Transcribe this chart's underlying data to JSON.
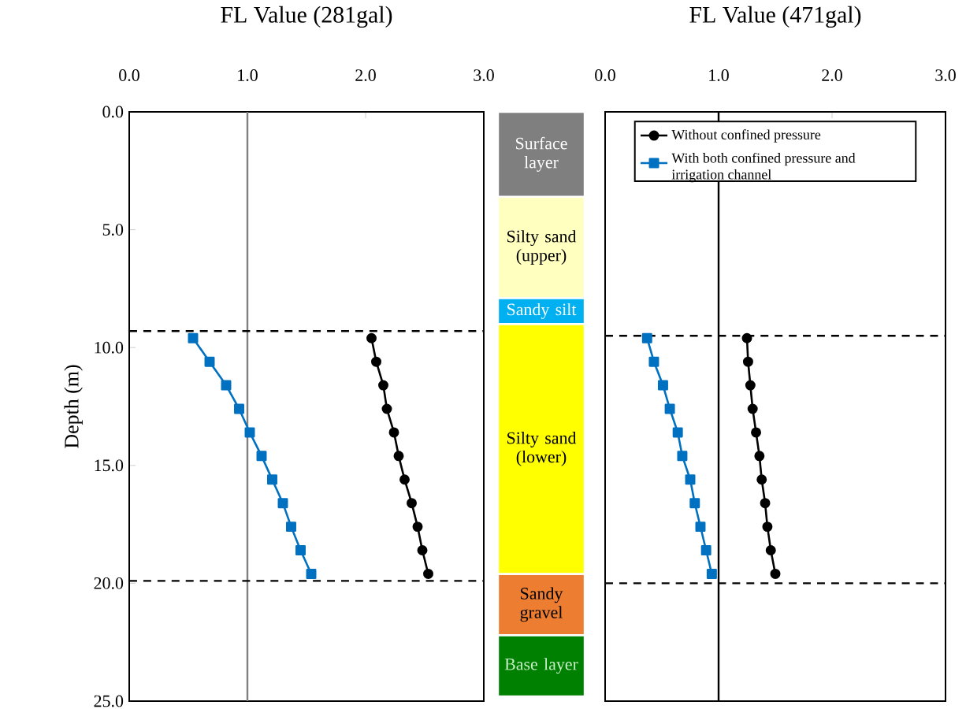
{
  "chart_data": [
    {
      "type": "line",
      "orientation": "horizontal",
      "title": "FL Value (281gal)",
      "ylabel": "Depth (m)",
      "xlim": [
        0,
        3
      ],
      "xticks": [
        {
          "value": 0,
          "label": "0.0"
        },
        {
          "value": 1,
          "label": "1.0"
        },
        {
          "value": 2,
          "label": "2.0"
        },
        {
          "value": 3,
          "label": "3.0"
        }
      ],
      "ylim": [
        25,
        0
      ],
      "yticks": [
        {
          "value": 0,
          "label": "0.0"
        },
        {
          "value": 5,
          "label": "5.0"
        },
        {
          "value": 10,
          "label": "10.0"
        },
        {
          "value": 15,
          "label": "15.0"
        },
        {
          "value": 20,
          "label": "20.0"
        },
        {
          "value": 25,
          "label": "25.0"
        }
      ],
      "series": [
        {
          "color": "#000000",
          "marker": "circle",
          "x": [
            9.6,
            10.6,
            11.6,
            12.6,
            13.6,
            14.6,
            15.6,
            16.6,
            17.6,
            18.6,
            19.6
          ],
          "values": [
            2.05,
            2.09,
            2.15,
            2.18,
            2.24,
            2.28,
            2.33,
            2.39,
            2.44,
            2.48,
            2.53
          ]
        },
        {
          "color": "#0070c0",
          "marker": "square",
          "x": [
            9.6,
            10.6,
            11.6,
            12.6,
            13.6,
            14.6,
            15.6,
            16.6,
            17.6,
            18.6,
            19.6
          ],
          "values": [
            0.54,
            0.68,
            0.82,
            0.93,
            1.02,
            1.12,
            1.21,
            1.3,
            1.37,
            1.45,
            1.54
          ]
        }
      ],
      "ref_lines": [
        {
          "axis": "x",
          "value": 1,
          "color": "#808080",
          "line_style": "solid"
        },
        {
          "axis": "y",
          "value": 9.3,
          "color": "#000000",
          "line_style": "dashed"
        },
        {
          "axis": "y",
          "value": 19.9,
          "color": "#000000",
          "line_style": "dashed"
        }
      ]
    },
    {
      "type": "bar",
      "stacked": true,
      "categories": [
        null
      ],
      "ylim": [
        25,
        0
      ],
      "tick_labels": false,
      "series": [
        {
          "name": "Surface layer",
          "color": "#7f7f7f",
          "values": [
            3.6
          ]
        },
        {
          "name": "Silty sand (upper)",
          "color": "#ffffc0",
          "values": [
            4.3
          ]
        },
        {
          "name": "Sandy silt",
          "color": "#00b0f0",
          "values": [
            1.1
          ]
        },
        {
          "name": "Silty sand (lower)",
          "color": "#ffff00",
          "values": [
            10.6
          ]
        },
        {
          "name": "Sandy gravel",
          "color": "#ed7d31",
          "values": [
            2.6
          ]
        },
        {
          "name": "Base layer",
          "color": "#008000",
          "values": [
            2.6
          ]
        }
      ]
    },
    {
      "type": "line",
      "orientation": "horizontal",
      "title": "FL Value (471gal)",
      "xlim": [
        0,
        3
      ],
      "xticks": [
        {
          "value": 0,
          "label": "0.0"
        },
        {
          "value": 1,
          "label": "1.0"
        },
        {
          "value": 2,
          "label": "2.0"
        },
        {
          "value": 3,
          "label": "3.0"
        }
      ],
      "ylim": [
        25,
        0
      ],
      "tick_labels": "x",
      "legend": "top",
      "series": [
        {
          "name": "Without confined pressure",
          "color": "#000000",
          "marker": "circle",
          "x": [
            9.6,
            10.6,
            11.6,
            12.6,
            13.6,
            14.6,
            15.6,
            16.6,
            17.6,
            18.6,
            19.6
          ],
          "values": [
            1.25,
            1.26,
            1.28,
            1.3,
            1.33,
            1.36,
            1.38,
            1.41,
            1.43,
            1.46,
            1.5
          ]
        },
        {
          "name": "With both confined pressure and irrigation channel",
          "color": "#0070c0",
          "marker": "square",
          "x": [
            9.6,
            10.6,
            11.6,
            12.6,
            13.6,
            14.6,
            15.6,
            16.6,
            17.6,
            18.6,
            19.6
          ],
          "values": [
            0.37,
            0.43,
            0.51,
            0.57,
            0.64,
            0.68,
            0.75,
            0.79,
            0.84,
            0.89,
            0.94
          ]
        }
      ],
      "ref_lines": [
        {
          "axis": "x",
          "value": 1,
          "color": "#000000",
          "line_style": "solid"
        },
        {
          "axis": "y",
          "value": 9.5,
          "color": "#000000",
          "line_style": "dashed"
        },
        {
          "axis": "y",
          "value": 20.0,
          "color": "#000000",
          "line_style": "dashed"
        }
      ]
    }
  ]
}
